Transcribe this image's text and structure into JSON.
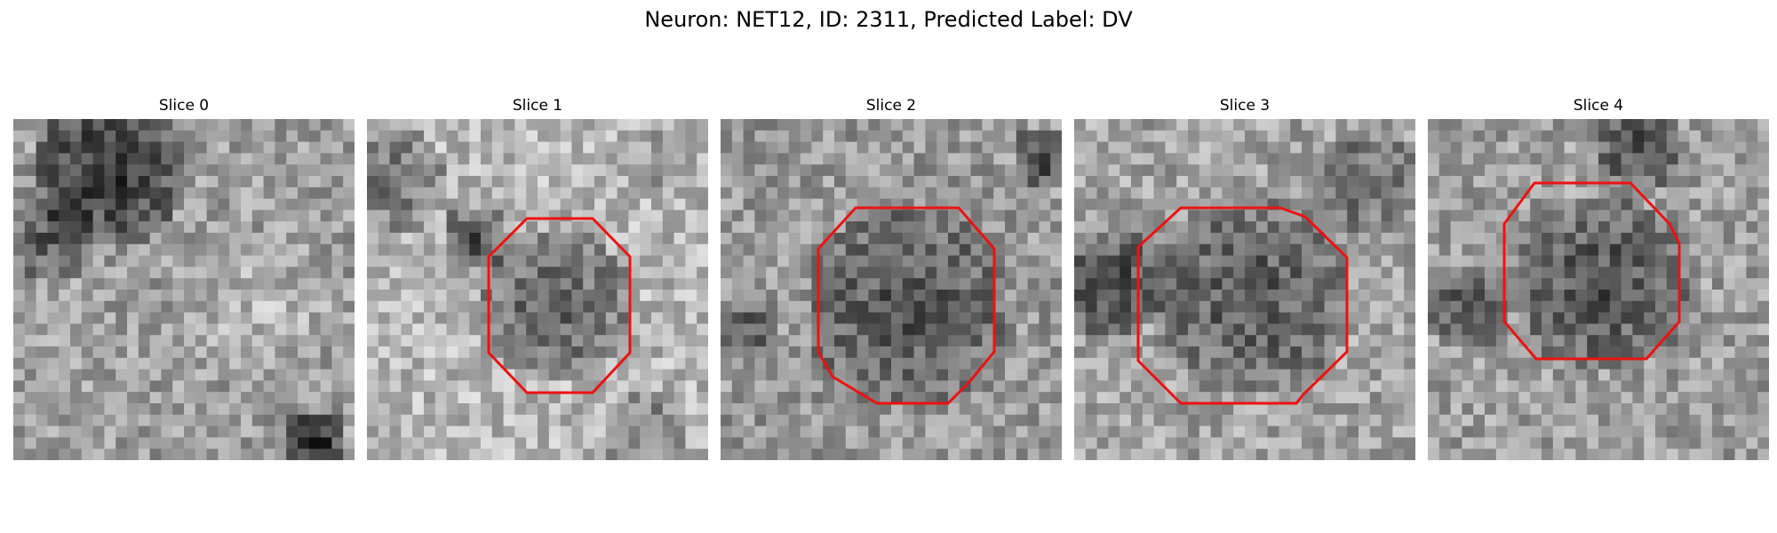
{
  "figure": {
    "title": "Neuron: NET12, ID: 2311, Predicted Label: DV"
  },
  "panels": [
    {
      "title": "Slice 0",
      "has_outline": false
    },
    {
      "title": "Slice 1",
      "has_outline": true
    },
    {
      "title": "Slice 2",
      "has_outline": true
    },
    {
      "title": "Slice 3",
      "has_outline": true
    },
    {
      "title": "Slice 4",
      "has_outline": true
    }
  ],
  "colors": {
    "outline": "#ee1111",
    "background": "#ffffff",
    "image_colormap": "grayscale"
  }
}
